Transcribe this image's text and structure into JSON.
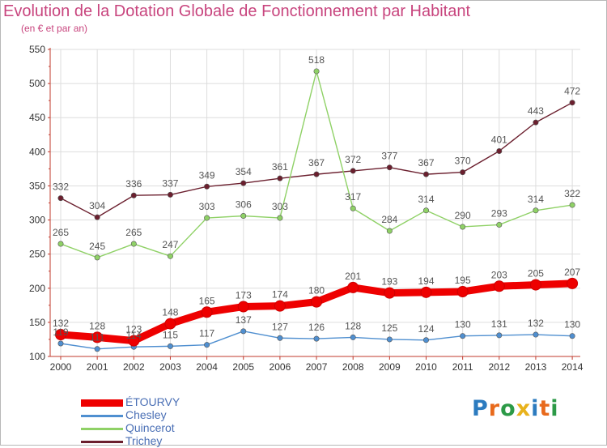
{
  "title": "Evolution de la Dotation Globale de Fonctionnement par Habitant",
  "subtitle": "(en € et par an)",
  "logo": {
    "text": "Proxiti",
    "letters": [
      "P",
      "r",
      "o",
      "x",
      "i",
      "t",
      "i"
    ],
    "colors": [
      "#2c7bbf",
      "#e86a1c",
      "#2c9a47",
      "#e8b21c",
      "#2c7bbf",
      "#e86a1c",
      "#2c9a47"
    ]
  },
  "colors": {
    "axis": "#c0392b",
    "grid": "#dddddd",
    "tick_text": "#333333",
    "label_text": "#555555",
    "legend_text": "#4a6fb5"
  },
  "chart_data": {
    "type": "line",
    "title": "Evolution de la Dotation Globale de Fonctionnement par Habitant",
    "subtitle": "(en € et par an)",
    "xlabel": "",
    "ylabel": "",
    "ylim": [
      100,
      550
    ],
    "yticks": [
      100,
      150,
      200,
      250,
      300,
      350,
      400,
      450,
      500,
      550
    ],
    "categories": [
      "2000",
      "2001",
      "2002",
      "2003",
      "2004",
      "2005",
      "2006",
      "2007",
      "2008",
      "2009",
      "2010",
      "2011",
      "2012",
      "2013",
      "2014"
    ],
    "grid": true,
    "legend_position": "bottom-left",
    "series": [
      {
        "name": "Trichey",
        "color": "#6b1f2e",
        "values": [
          332,
          304,
          336,
          337,
          349,
          354,
          361,
          367,
          372,
          377,
          367,
          370,
          401,
          443,
          472
        ]
      },
      {
        "name": "Quincerot",
        "color": "#8fd166",
        "values": [
          265,
          245,
          265,
          247,
          303,
          306,
          303,
          518,
          317,
          284,
          314,
          290,
          293,
          314,
          322
        ]
      },
      {
        "name": "Chesley",
        "color": "#4f8fd0",
        "values": [
          119,
          111,
          114,
          115,
          117,
          137,
          127,
          126,
          128,
          125,
          124,
          130,
          131,
          132,
          130
        ]
      },
      {
        "name": "ÉTOURVY",
        "color": "#ee0000",
        "values": [
          132,
          128,
          123,
          148,
          165,
          173,
          174,
          180,
          201,
          193,
          194,
          195,
          203,
          205,
          207
        ]
      }
    ],
    "legend": [
      "ÉTOURVY",
      "Chesley",
      "Quincerot",
      "Trichey"
    ]
  }
}
